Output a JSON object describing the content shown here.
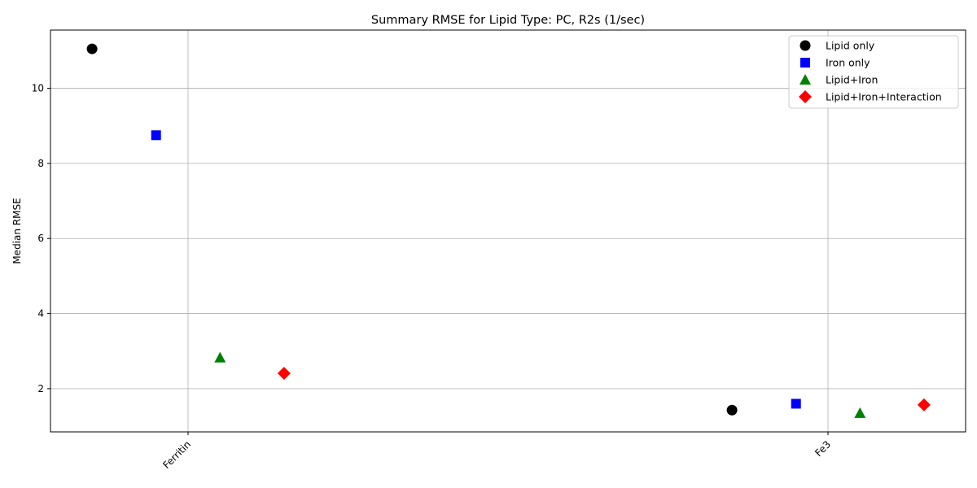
{
  "chart_data": {
    "type": "scatter",
    "title": "Summary RMSE for Lipid Type: PC, R2s (1/sec)",
    "xlabel": "",
    "ylabel": "Median RMSE",
    "categories": [
      "Ferritin",
      "Fe3"
    ],
    "yticks": [
      2,
      4,
      6,
      8,
      10
    ],
    "ylim": [
      0.85,
      11.55
    ],
    "grid": true,
    "legend_position": "top-right",
    "series": [
      {
        "name": "Lipid only",
        "marker": "circle",
        "color": "#000000",
        "offset": -0.15,
        "values": [
          11.05,
          1.43
        ]
      },
      {
        "name": "Iron only",
        "marker": "square",
        "color": "#0000ff",
        "offset": -0.05,
        "values": [
          8.75,
          1.6
        ]
      },
      {
        "name": "Lipid+Iron",
        "marker": "triangle",
        "color": "#008000",
        "offset": 0.05,
        "values": [
          2.83,
          1.35
        ]
      },
      {
        "name": "Lipid+Iron+Interaction",
        "marker": "diamond",
        "color": "#ff0000",
        "offset": 0.15,
        "values": [
          2.41,
          1.57
        ]
      }
    ]
  }
}
